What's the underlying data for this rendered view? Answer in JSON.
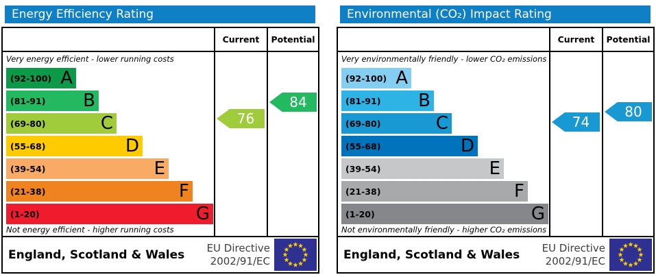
{
  "theme": {
    "header_blue": "#0f80c5",
    "eu_flag_background": "#2e3192",
    "eu_flag_star_color": "#ffcc00"
  },
  "chart_data": [
    {
      "type": "bar",
      "title": "Energy Efficiency Rating",
      "columns": [
        "Current",
        "Potential"
      ],
      "subtitle_top": "Very energy efficient - lower running costs",
      "subtitle_bottom": "Not energy efficient - higher running costs",
      "bands": [
        {
          "letter": "A",
          "label": "(92-100)",
          "min": 92,
          "max": 100,
          "color": "#0c9a49"
        },
        {
          "letter": "B",
          "label": "(81-91)",
          "min": 81,
          "max": 91,
          "color": "#22b960"
        },
        {
          "letter": "C",
          "label": "(69-80)",
          "min": 69,
          "max": 80,
          "color": "#a0cc3b"
        },
        {
          "letter": "D",
          "label": "(55-68)",
          "min": 55,
          "max": 68,
          "color": "#fecb00"
        },
        {
          "letter": "E",
          "label": "(39-54)",
          "min": 39,
          "max": 54,
          "color": "#f9aa65"
        },
        {
          "letter": "F",
          "label": "(21-38)",
          "min": 21,
          "max": 38,
          "color": "#f0821f"
        },
        {
          "letter": "G",
          "label": "(1-20)",
          "min": 1,
          "max": 20,
          "color": "#ee1c2c"
        }
      ],
      "current": 76,
      "potential": 84,
      "footer_region": "England, Scotland & Wales",
      "eu_directive_line1": "EU Directive",
      "eu_directive_line2": "2002/91/EC"
    },
    {
      "type": "bar",
      "title": "Environmental (CO₂) Impact Rating",
      "columns": [
        "Current",
        "Potential"
      ],
      "subtitle_top": "Very environmentally friendly - lower CO₂ emissions",
      "subtitle_bottom": "Not environmentally friendly - higher CO₂ emissions",
      "bands": [
        {
          "letter": "A",
          "label": "(92-100)",
          "min": 92,
          "max": 100,
          "color": "#84cff1"
        },
        {
          "letter": "B",
          "label": "(81-91)",
          "min": 81,
          "max": 91,
          "color": "#2db3e6"
        },
        {
          "letter": "C",
          "label": "(69-80)",
          "min": 69,
          "max": 80,
          "color": "#1899d3"
        },
        {
          "letter": "D",
          "label": "(55-68)",
          "min": 55,
          "max": 68,
          "color": "#0073bd"
        },
        {
          "letter": "E",
          "label": "(39-54)",
          "min": 39,
          "max": 54,
          "color": "#c6c7c9"
        },
        {
          "letter": "F",
          "label": "(21-38)",
          "min": 21,
          "max": 38,
          "color": "#a7a9ab"
        },
        {
          "letter": "G",
          "label": "(1-20)",
          "min": 1,
          "max": 20,
          "color": "#85878a"
        }
      ],
      "current": 74,
      "potential": 80,
      "footer_region": "England, Scotland & Wales",
      "eu_directive_line1": "EU Directive",
      "eu_directive_line2": "2002/91/EC"
    }
  ]
}
